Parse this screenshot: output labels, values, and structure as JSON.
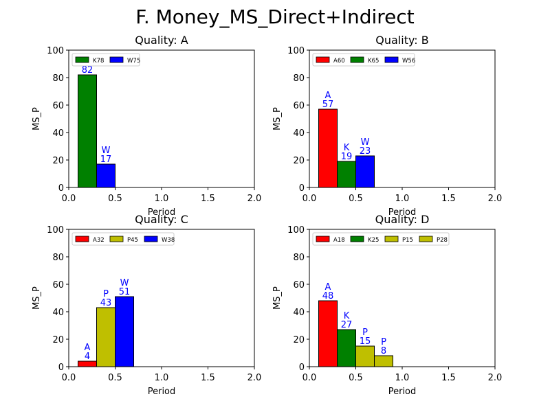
{
  "figure_title": "F. Money_MS_Direct+Indirect",
  "colors": {
    "red": "#ff0000",
    "green": "#008000",
    "blue": "#0000ff",
    "yellow": "#bfbf00",
    "label": "#0000ff"
  },
  "chart_data": [
    {
      "type": "bar",
      "title": "Quality: A",
      "xlabel": "Period",
      "ylabel": "MS_P",
      "xlim": [
        0,
        2
      ],
      "ylim": [
        0,
        100
      ],
      "xticks": [
        "0.0",
        "0.5",
        "1.0",
        "1.5",
        "2.0"
      ],
      "yticks": [
        "0",
        "20",
        "40",
        "60",
        "80",
        "100"
      ],
      "legend_position": "top-left",
      "bar_width": 0.2,
      "bars": [
        {
          "x": 0.2,
          "value": 82,
          "letter": "",
          "label": "82",
          "color": "green",
          "legend": "K78"
        },
        {
          "x": 0.4,
          "value": 17,
          "letter": "W",
          "label": "17",
          "color": "blue",
          "legend": "W75"
        }
      ]
    },
    {
      "type": "bar",
      "title": "Quality: B",
      "xlabel": "Period",
      "ylabel": "MS_P",
      "xlim": [
        0,
        2
      ],
      "ylim": [
        0,
        100
      ],
      "xticks": [
        "0.0",
        "0.5",
        "1.0",
        "1.5",
        "2.0"
      ],
      "yticks": [
        "0",
        "20",
        "40",
        "60",
        "80",
        "100"
      ],
      "legend_position": "top-left",
      "bar_width": 0.2,
      "bars": [
        {
          "x": 0.2,
          "value": 57,
          "letter": "A",
          "label": "57",
          "color": "red",
          "legend": "A60"
        },
        {
          "x": 0.4,
          "value": 19,
          "letter": "K",
          "label": "19",
          "color": "green",
          "legend": "K65"
        },
        {
          "x": 0.6,
          "value": 23,
          "letter": "W",
          "label": "23",
          "color": "blue",
          "legend": "W56"
        }
      ]
    },
    {
      "type": "bar",
      "title": "Quality: C",
      "xlabel": "Period",
      "ylabel": "MS_P",
      "xlim": [
        0,
        2
      ],
      "ylim": [
        0,
        100
      ],
      "xticks": [
        "0.0",
        "0.5",
        "1.0",
        "1.5",
        "2.0"
      ],
      "yticks": [
        "0",
        "20",
        "40",
        "60",
        "80",
        "100"
      ],
      "legend_position": "top-left",
      "bar_width": 0.2,
      "bars": [
        {
          "x": 0.2,
          "value": 4,
          "letter": "A",
          "label": "4",
          "color": "red",
          "legend": "A32"
        },
        {
          "x": 0.4,
          "value": 43,
          "letter": "P",
          "label": "43",
          "color": "yellow",
          "legend": "P45"
        },
        {
          "x": 0.6,
          "value": 51,
          "letter": "W",
          "label": "51",
          "color": "blue",
          "legend": "W38"
        }
      ]
    },
    {
      "type": "bar",
      "title": "Quality: D",
      "xlabel": "Period",
      "ylabel": "MS_P",
      "xlim": [
        0,
        2
      ],
      "ylim": [
        0,
        100
      ],
      "xticks": [
        "0.0",
        "0.5",
        "1.0",
        "1.5",
        "2.0"
      ],
      "yticks": [
        "0",
        "20",
        "40",
        "60",
        "80",
        "100"
      ],
      "legend_position": "top-left",
      "bar_width": 0.2,
      "bars": [
        {
          "x": 0.2,
          "value": 48,
          "letter": "A",
          "label": "48",
          "color": "red",
          "legend": "A18"
        },
        {
          "x": 0.4,
          "value": 27,
          "letter": "K",
          "label": "27",
          "color": "green",
          "legend": "K25"
        },
        {
          "x": 0.6,
          "value": 15,
          "letter": "P",
          "label": "15",
          "color": "yellow",
          "legend": "P15"
        },
        {
          "x": 0.8,
          "value": 8,
          "letter": "P",
          "label": "8",
          "color": "yellow",
          "legend": "P28"
        }
      ]
    }
  ]
}
